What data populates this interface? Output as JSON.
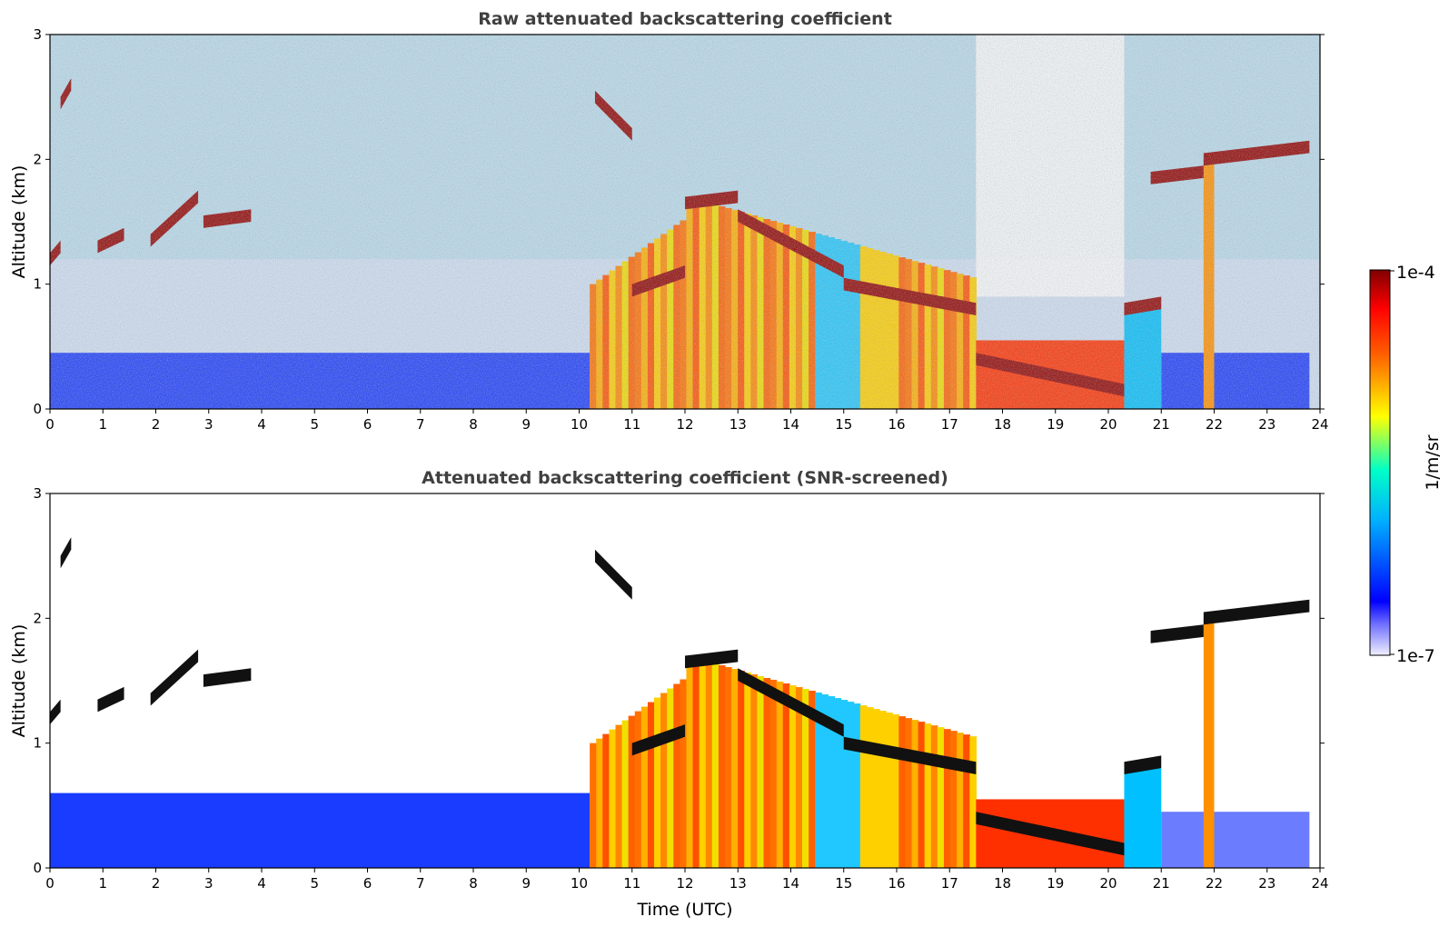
{
  "chart_data": [
    {
      "type": "heatmap",
      "title": "Raw attenuated backscattering coefficient",
      "xlabel": "",
      "ylabel": "Altitude (km)",
      "xlim": [
        0,
        24
      ],
      "ylim": [
        0,
        3
      ],
      "x_ticks": [
        "0",
        "1",
        "2",
        "3",
        "4",
        "5",
        "6",
        "7",
        "8",
        "9",
        "10",
        "11",
        "12",
        "13",
        "14",
        "15",
        "16",
        "17",
        "18",
        "19",
        "20",
        "21",
        "22",
        "23",
        "24"
      ],
      "y_ticks": [
        "0",
        "1",
        "2",
        "3"
      ],
      "boundary_layer_top_km": 0.45,
      "aerosol_column": [
        {
          "t0": 10.2,
          "t1": 17.5,
          "top_km": 1.7
        }
      ],
      "cloud_layers": [
        {
          "t": [
            0.0,
            0.2
          ],
          "alt": [
            1.2,
            1.3
          ]
        },
        {
          "t": [
            0.2,
            0.4
          ],
          "alt": [
            2.45,
            2.6
          ]
        },
        {
          "t": [
            0.9,
            1.4
          ],
          "alt": [
            1.3,
            1.4
          ]
        },
        {
          "t": [
            1.9,
            2.8
          ],
          "alt": [
            1.35,
            1.7
          ]
        },
        {
          "t": [
            2.9,
            3.8
          ],
          "alt": [
            1.5,
            1.55
          ]
        },
        {
          "t": [
            10.3,
            11.0
          ],
          "alt": [
            2.5,
            2.2
          ]
        },
        {
          "t": [
            11.0,
            12.0
          ],
          "alt": [
            0.95,
            1.1
          ]
        },
        {
          "t": [
            12.0,
            13.0
          ],
          "alt": [
            1.65,
            1.7
          ]
        },
        {
          "t": [
            13.0,
            15.0
          ],
          "alt": [
            1.55,
            1.1
          ]
        },
        {
          "t": [
            15.0,
            17.5
          ],
          "alt": [
            1.0,
            0.8
          ]
        },
        {
          "t": [
            17.5,
            20.3
          ],
          "alt": [
            0.4,
            0.15
          ]
        },
        {
          "t": [
            20.3,
            21.0
          ],
          "alt": [
            0.8,
            0.85
          ]
        },
        {
          "t": [
            20.8,
            21.8
          ],
          "alt": [
            1.85,
            1.9
          ]
        },
        {
          "t": [
            21.8,
            23.8
          ],
          "alt": [
            2.0,
            2.1
          ]
        }
      ]
    },
    {
      "type": "heatmap",
      "title": "Attenuated backscattering coefficient (SNR-screened)",
      "xlabel": "Time (UTC)",
      "ylabel": "Altitude (km)",
      "xlim": [
        0,
        24
      ],
      "ylim": [
        0,
        3
      ],
      "x_ticks": [
        "0",
        "1",
        "2",
        "3",
        "4",
        "5",
        "6",
        "7",
        "8",
        "9",
        "10",
        "11",
        "12",
        "13",
        "14",
        "15",
        "16",
        "17",
        "18",
        "19",
        "20",
        "21",
        "22",
        "23",
        "24"
      ],
      "y_ticks": [
        "0",
        "1",
        "2",
        "3"
      ],
      "screened_boundary_layer_top_km": [
        0.9,
        0.6,
        0.6,
        0.55,
        0.5,
        0.5,
        0.55,
        0.55,
        0.6,
        0.55,
        0.6
      ]
    }
  ],
  "colorbar": {
    "label": "1/m/sr",
    "max_label": "1e-4",
    "min_label": "1e-7",
    "scale": "log",
    "colors": [
      "#f0f0ff",
      "#3030ff",
      "#00c8ff",
      "#00ffc0",
      "#ffff00",
      "#ff8000",
      "#ff2000",
      "#800000"
    ]
  }
}
